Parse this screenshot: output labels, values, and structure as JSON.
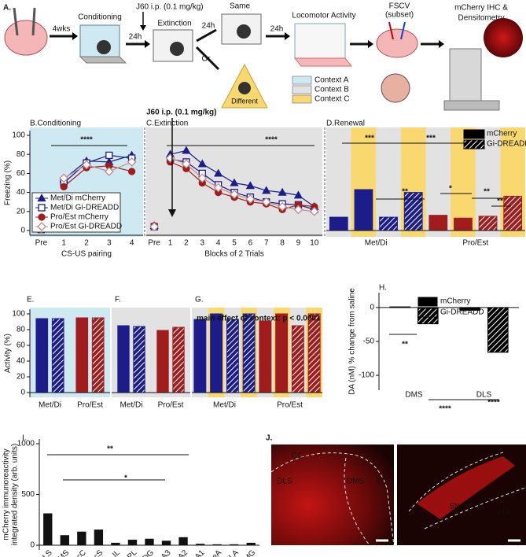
{
  "schematic": {
    "label": "A.",
    "conditioning": "Conditioning",
    "wait": "4wks",
    "injection": "J60 i.p. (0.1 mg/kg)",
    "delays": [
      "24h",
      "24h",
      "24h"
    ],
    "extinction": "Extinction",
    "same": "Same",
    "or": "Or",
    "different": "Different",
    "locomotor": "Locomotor Activity",
    "fscv": [
      "FSCV",
      "(subset)"
    ],
    "ihc": [
      "mCherry IHC &",
      "Densitometry"
    ],
    "contexts": [
      {
        "name": "Context A",
        "color": "#cfe9f3"
      },
      {
        "name": "Context B",
        "color": "#e2e2e2"
      },
      {
        "name": "Context C",
        "color": "#f9d870"
      }
    ]
  },
  "chart_data": [
    {
      "type": "line",
      "title": "B.Conditioning",
      "xlabel": "CS-US pairing",
      "ylabel": "Freezing (%)",
      "categories": [
        "Pre",
        "1",
        "2",
        "3",
        "4"
      ],
      "ylim": [
        0,
        100
      ],
      "yticks": [
        0,
        20,
        40,
        60,
        80,
        100
      ],
      "background": "#cfe9f3",
      "legend": "lower left",
      "annotations": [
        "****"
      ],
      "series": [
        {
          "name": "Met/Di mCherry",
          "color": "#1c1c8a",
          "marker": "triangle",
          "filled": true,
          "values": [
            2,
            54,
            73,
            72,
            79
          ]
        },
        {
          "name": "Met/Di Gi-DREADD",
          "color": "#1c1c8a",
          "marker": "square",
          "filled": false,
          "values": [
            1,
            50,
            71,
            79,
            76
          ]
        },
        {
          "name": "Pro/Est mCherry",
          "color": "#a11d1d",
          "marker": "circle",
          "filled": true,
          "values": [
            2,
            46,
            66,
            68,
            62
          ]
        },
        {
          "name": "Pro/Est Gi-DREADD",
          "color": "#c28b8b",
          "marker": "diamond",
          "filled": false,
          "values": [
            1,
            55,
            69,
            62,
            72
          ]
        }
      ]
    },
    {
      "type": "line",
      "title": "C.Extinction",
      "xlabel": "Blocks of 2 Trials",
      "categories": [
        "Pre",
        "1",
        "2",
        "3",
        "4",
        "5",
        "6",
        "7",
        "8",
        "9",
        "10"
      ],
      "ylim": [
        0,
        100
      ],
      "background": "#e2e2e2",
      "annotations": [
        "J60 i.p. (0.1 mg/kg)",
        "****"
      ],
      "series": [
        {
          "color": "#1c1c8a",
          "marker": "triangle",
          "filled": true,
          "values": [
            5,
            80,
            84,
            70,
            60,
            50,
            47,
            42,
            40,
            37,
            25
          ]
        },
        {
          "color": "#1c1c8a",
          "marker": "square",
          "filled": false,
          "values": [
            4,
            75,
            72,
            60,
            48,
            40,
            35,
            30,
            28,
            27,
            22
          ]
        },
        {
          "color": "#a11d1d",
          "marker": "circle",
          "filled": true,
          "values": [
            5,
            72,
            65,
            50,
            40,
            35,
            30,
            28,
            22,
            27,
            25
          ]
        },
        {
          "color": "#c28b8b",
          "marker": "diamond",
          "filled": false,
          "values": [
            4,
            76,
            70,
            55,
            45,
            38,
            33,
            30,
            25,
            22,
            20
          ]
        }
      ]
    },
    {
      "type": "bar",
      "title": "D.Renewal",
      "categories": [
        "Met/Di",
        "Pro/Est"
      ],
      "category_colors": [
        "#1c1c8a",
        "#a11d1d"
      ],
      "ylim": [
        0,
        100
      ],
      "background": "#e2e2e2",
      "annotations": [
        "***",
        "***",
        "**",
        "*",
        "**",
        "**"
      ],
      "legend": [
        {
          "name": "mCherry",
          "color": "#000000",
          "hatch": false
        },
        {
          "name": "Gi-DREADD",
          "color": "#000000",
          "hatch": true
        }
      ],
      "series": [
        {
          "hatch": false,
          "background": "#e2e2e2",
          "values": [
            14,
            16
          ]
        },
        {
          "hatch": false,
          "background": "#f9d870",
          "values": [
            43,
            13
          ]
        },
        {
          "hatch": true,
          "background": "#e2e2e2",
          "values": [
            14,
            15
          ]
        },
        {
          "hatch": true,
          "background": "#f9d870",
          "values": [
            40,
            36
          ]
        }
      ]
    },
    {
      "type": "bar",
      "title": "E.",
      "ylabel": "Activity (%)",
      "categories": [
        "Met/Di",
        "Pro/Est"
      ],
      "category_colors": [
        "#1c1c8a",
        "#a11d1d"
      ],
      "ylim": [
        0,
        100
      ],
      "yticks": [
        0,
        20,
        40,
        60,
        80,
        100
      ],
      "background": "#cfe9f3",
      "series": [
        {
          "hatch": false,
          "values": [
            94,
            95
          ]
        },
        {
          "hatch": true,
          "values": [
            94,
            95
          ]
        }
      ]
    },
    {
      "type": "bar",
      "title": "F.",
      "categories": [
        "Met/Di",
        "Pro/Est"
      ],
      "category_colors": [
        "#1c1c8a",
        "#a11d1d"
      ],
      "ylim": [
        0,
        100
      ],
      "background": "#e2e2e2",
      "series": [
        {
          "hatch": false,
          "values": [
            85,
            79
          ]
        },
        {
          "hatch": true,
          "values": [
            84,
            83
          ]
        }
      ]
    },
    {
      "type": "bar",
      "title": "G.",
      "categories": [
        "Met/Di",
        "Pro/Est"
      ],
      "category_colors": [
        "#1c1c8a",
        "#a11d1d"
      ],
      "ylim": [
        0,
        100
      ],
      "background": "#e2e2e2",
      "annotations": [
        "main effect of context: p < 0.0001"
      ],
      "series": [
        {
          "hatch": false,
          "background": "#e2e2e2",
          "values": [
            93,
            91
          ]
        },
        {
          "hatch": false,
          "background": "#f9d870",
          "values": [
            100,
            100
          ]
        },
        {
          "hatch": true,
          "background": "#e2e2e2",
          "values": [
            93,
            85
          ]
        },
        {
          "hatch": true,
          "background": "#f9d870",
          "values": [
            100,
            100
          ]
        }
      ]
    },
    {
      "type": "bar",
      "title": "H.",
      "ylabel": "DA (nM) % change from saline",
      "categories": [
        "DMS",
        "DLS"
      ],
      "ylim": [
        -115,
        15
      ],
      "yticks": [
        0,
        -50,
        -100
      ],
      "legend": "upper right",
      "annotations": [
        "**",
        "****",
        "****"
      ],
      "series": [
        {
          "name": "mCherry",
          "color": "#000000",
          "hatch": false,
          "values": [
            1,
            -4
          ]
        },
        {
          "name": "Gi-DREADD",
          "color": "#000000",
          "hatch": true,
          "values": [
            -24,
            -66
          ]
        }
      ]
    },
    {
      "type": "bar",
      "title": "I.",
      "ylabel": [
        "mCherry immunoreactivity",
        "integrated density (arb. units)"
      ],
      "categories": [
        "DLS",
        "DMS",
        "NAcC",
        "NAcS",
        "IL",
        "PL",
        "DG",
        "CA3",
        "CA2",
        "CA1",
        "CeA",
        "BLA",
        "MeVAMG"
      ],
      "values": [
        310,
        95,
        130,
        150,
        20,
        50,
        60,
        40,
        75,
        10,
        5,
        5,
        20
      ],
      "color": "#111111",
      "ylim": [
        0,
        1000
      ],
      "yticks": [
        0,
        500,
        1000
      ],
      "annotations": [
        "**",
        "*"
      ]
    }
  ],
  "micrographs": {
    "label": "J.",
    "left": [
      "CC",
      "DLS",
      "DMS",
      "LV"
    ],
    "right": [
      "SN",
      "VTA"
    ]
  }
}
